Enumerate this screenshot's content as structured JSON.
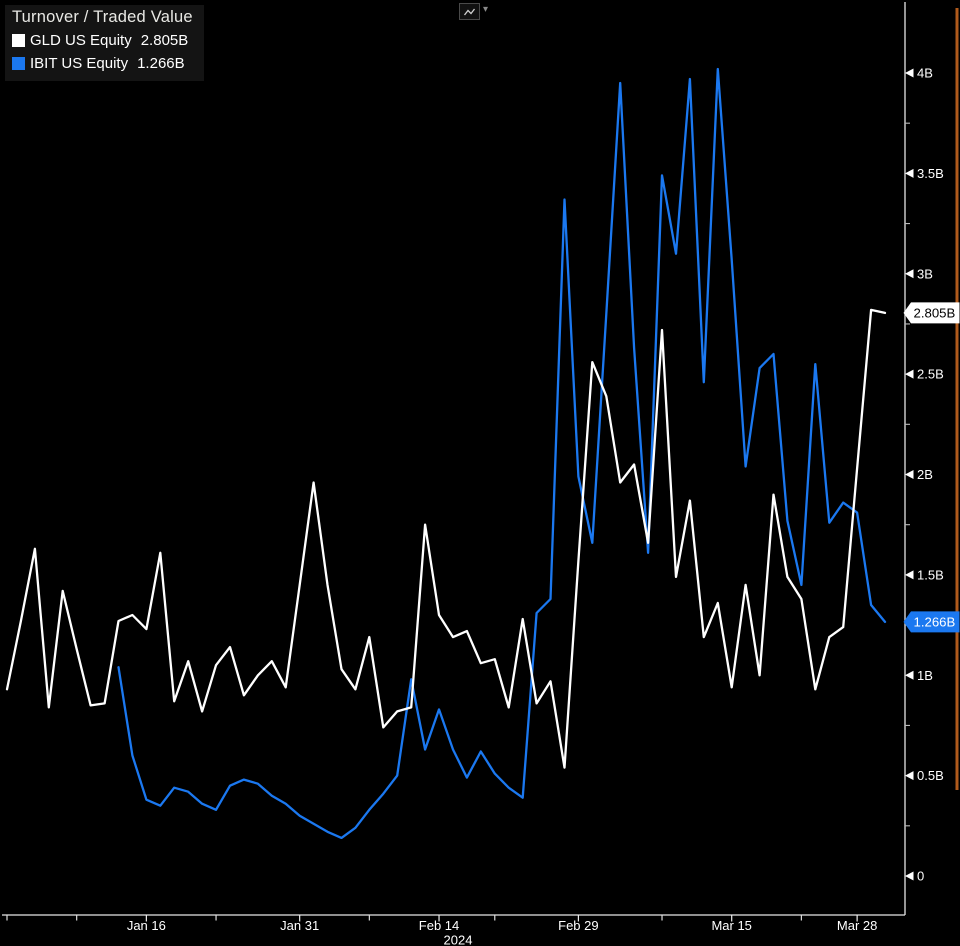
{
  "header": {
    "title": "Turnover / Traded Value",
    "toolbar": {
      "icon": "line-chart-icon",
      "caret": "▾"
    }
  },
  "right_edge": {
    "color": "#b05a1b"
  },
  "chart_data": {
    "type": "line",
    "title": "Turnover / Traded Value",
    "unit": "billions (B)",
    "grid": false,
    "legend_position": "top-left",
    "x_axis": {
      "num_points": 64,
      "tick_labels": [
        "Jan 16",
        "Jan 31",
        "Feb 14",
        "Feb 29",
        "Mar 15",
        "Mar 28"
      ],
      "tick_indices": [
        10,
        21,
        31,
        41,
        52,
        61
      ],
      "minor_tick_indices": [
        0,
        5,
        15,
        26,
        35,
        47,
        57
      ],
      "year_label": "2024"
    },
    "y_axis": {
      "ticks": [
        "0",
        "0.5B",
        "1B",
        "1.5B",
        "2B",
        "2.5B",
        "3B",
        "3.5B",
        "4B"
      ],
      "tick_values": [
        0,
        0.5,
        1,
        1.5,
        2,
        2.5,
        3,
        3.5,
        4
      ],
      "minor_tick_values": [
        0.25,
        0.75,
        1.25,
        1.75,
        2.25,
        2.75,
        3.25,
        3.75
      ],
      "range": [
        0,
        4.18
      ]
    },
    "series": [
      {
        "id": "gld",
        "name": "GLD US Equity",
        "last_value_label": "2.805B",
        "color": "#ffffff",
        "badge_bg": "#ffffff",
        "badge_text_color": "#000000",
        "start_index": 0,
        "values": [
          0.93,
          1.27,
          1.63,
          0.84,
          1.42,
          1.13,
          0.85,
          0.86,
          1.27,
          1.3,
          1.23,
          1.61,
          0.87,
          1.07,
          0.82,
          1.05,
          1.14,
          0.9,
          1.0,
          1.07,
          0.94,
          1.45,
          1.96,
          1.45,
          1.03,
          0.93,
          1.19,
          0.74,
          0.82,
          0.84,
          1.75,
          1.3,
          1.19,
          1.22,
          1.06,
          1.08,
          0.84,
          1.28,
          0.86,
          0.97,
          0.54,
          1.57,
          2.56,
          2.39,
          1.96,
          2.05,
          1.66,
          2.72,
          1.49,
          1.87,
          1.19,
          1.36,
          0.94,
          1.45,
          1.0,
          1.9,
          1.49,
          1.38,
          0.93,
          1.19,
          1.24,
          2.03,
          2.82,
          2.805
        ]
      },
      {
        "id": "ibit",
        "name": "IBIT US Equity",
        "last_value_label": "1.266B",
        "color": "#1b78f0",
        "badge_bg": "#1b78f0",
        "badge_text_color": "#ffffff",
        "start_index": 8,
        "values": [
          1.04,
          0.6,
          0.38,
          0.35,
          0.44,
          0.42,
          0.36,
          0.33,
          0.45,
          0.48,
          0.46,
          0.4,
          0.36,
          0.3,
          0.26,
          0.22,
          0.19,
          0.24,
          0.33,
          0.41,
          0.5,
          0.98,
          0.63,
          0.83,
          0.63,
          0.49,
          0.62,
          0.51,
          0.44,
          0.39,
          1.31,
          1.38,
          3.37,
          1.99,
          1.66,
          2.8,
          3.95,
          2.63,
          1.61,
          3.49,
          3.1,
          3.97,
          2.46,
          4.02,
          3.07,
          2.04,
          2.53,
          2.6,
          1.77,
          1.45,
          2.55,
          1.76,
          1.86,
          1.81,
          1.35,
          1.266
        ]
      }
    ]
  }
}
